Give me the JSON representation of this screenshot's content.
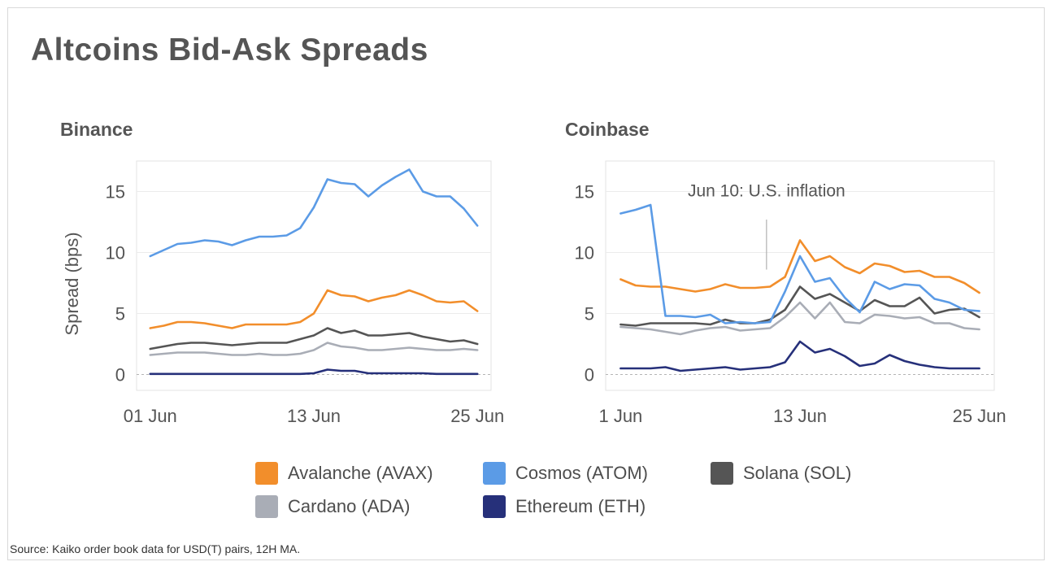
{
  "title": "Altcoins Bid-Ask Spreads",
  "source": "Source: Kaiko order book data for USD(T) pairs, 12H MA.",
  "colors": {
    "Avalanche (AVAX)": "#f28e2b",
    "Cosmos (ATOM)": "#5b9be6",
    "Solana (SOL)": "#555555",
    "Cardano (ADA)": "#a9adb6",
    "Ethereum (ETH)": "#26307a"
  },
  "legend": [
    {
      "label": "Avalanche (AVAX)",
      "color": "#f28e2b"
    },
    {
      "label": "Cosmos (ATOM)",
      "color": "#5b9be6"
    },
    {
      "label": "Solana (SOL)",
      "color": "#555555"
    },
    {
      "label": "Cardano (ADA)",
      "color": "#a9adb6"
    },
    {
      "label": "Ethereum (ETH)",
      "color": "#26307a"
    }
  ],
  "chart_data": [
    {
      "type": "line",
      "title": "Binance",
      "xlabel": "",
      "ylabel": "Spread (bps)",
      "ylim": [
        -1.3,
        17.5
      ],
      "yticks": [
        0,
        5,
        10,
        15
      ],
      "xlim": [
        "2022-05-31",
        "2022-06-26"
      ],
      "xticks": [
        {
          "date": "2022-06-01",
          "label": "01 Jun"
        },
        {
          "date": "2022-06-13",
          "label": "13 Jun"
        },
        {
          "date": "2022-06-25",
          "label": "25 Jun"
        }
      ],
      "x": [
        "2022-06-01",
        "2022-06-02",
        "2022-06-03",
        "2022-06-04",
        "2022-06-05",
        "2022-06-06",
        "2022-06-07",
        "2022-06-08",
        "2022-06-09",
        "2022-06-10",
        "2022-06-11",
        "2022-06-12",
        "2022-06-13",
        "2022-06-14",
        "2022-06-15",
        "2022-06-16",
        "2022-06-17",
        "2022-06-18",
        "2022-06-19",
        "2022-06-20",
        "2022-06-21",
        "2022-06-22",
        "2022-06-23",
        "2022-06-24",
        "2022-06-25"
      ],
      "series": [
        {
          "name": "Avalanche (AVAX)",
          "values": [
            3.8,
            4.0,
            4.3,
            4.3,
            4.2,
            4.0,
            3.8,
            4.1,
            4.1,
            4.1,
            4.1,
            4.3,
            5.0,
            6.9,
            6.5,
            6.4,
            6.0,
            6.3,
            6.5,
            6.9,
            6.5,
            6.0,
            5.9,
            6.0,
            5.2
          ]
        },
        {
          "name": "Cosmos (ATOM)",
          "values": [
            9.7,
            10.2,
            10.7,
            10.8,
            11.0,
            10.9,
            10.6,
            11.0,
            11.3,
            11.3,
            11.4,
            12.0,
            13.7,
            16.0,
            15.7,
            15.6,
            14.6,
            15.5,
            16.2,
            16.8,
            15.0,
            14.6,
            14.6,
            13.6,
            12.2
          ]
        },
        {
          "name": "Solana (SOL)",
          "values": [
            2.1,
            2.3,
            2.5,
            2.6,
            2.6,
            2.5,
            2.4,
            2.5,
            2.6,
            2.6,
            2.6,
            2.9,
            3.2,
            3.8,
            3.4,
            3.6,
            3.2,
            3.2,
            3.3,
            3.4,
            3.1,
            2.9,
            2.7,
            2.8,
            2.5
          ]
        },
        {
          "name": "Cardano (ADA)",
          "values": [
            1.6,
            1.7,
            1.8,
            1.8,
            1.8,
            1.7,
            1.6,
            1.6,
            1.7,
            1.6,
            1.6,
            1.7,
            2.0,
            2.6,
            2.3,
            2.2,
            2.0,
            2.0,
            2.1,
            2.2,
            2.1,
            2.0,
            2.0,
            2.1,
            2.0
          ]
        },
        {
          "name": "Ethereum (ETH)",
          "values": [
            0.05,
            0.05,
            0.05,
            0.05,
            0.05,
            0.05,
            0.05,
            0.05,
            0.05,
            0.05,
            0.05,
            0.05,
            0.1,
            0.4,
            0.3,
            0.3,
            0.1,
            0.1,
            0.1,
            0.1,
            0.1,
            0.05,
            0.05,
            0.05,
            0.05
          ]
        }
      ]
    },
    {
      "type": "line",
      "title": "Coinbase",
      "xlabel": "",
      "ylabel": "",
      "ylim": [
        -1.3,
        17.5
      ],
      "yticks": [
        0,
        5,
        10,
        15
      ],
      "xlim": [
        "2022-05-31",
        "2022-06-26"
      ],
      "xticks": [
        {
          "date": "2022-06-01",
          "label": "1 Jun"
        },
        {
          "date": "2022-06-13",
          "label": "13 Jun"
        },
        {
          "date": "2022-06-25",
          "label": "25 Jun"
        }
      ],
      "annotation": {
        "text": "Jun 10: U.S. inflation",
        "date": "2022-06-10"
      },
      "x": [
        "2022-06-01",
        "2022-06-02",
        "2022-06-03",
        "2022-06-04",
        "2022-06-05",
        "2022-06-06",
        "2022-06-07",
        "2022-06-08",
        "2022-06-09",
        "2022-06-10",
        "2022-06-11",
        "2022-06-12",
        "2022-06-13",
        "2022-06-14",
        "2022-06-15",
        "2022-06-16",
        "2022-06-17",
        "2022-06-18",
        "2022-06-19",
        "2022-06-20",
        "2022-06-21",
        "2022-06-22",
        "2022-06-23",
        "2022-06-24",
        "2022-06-25"
      ],
      "series": [
        {
          "name": "Avalanche (AVAX)",
          "values": [
            7.8,
            7.3,
            7.2,
            7.2,
            7.0,
            6.8,
            7.0,
            7.4,
            7.1,
            7.1,
            7.2,
            8.0,
            11.0,
            9.3,
            9.7,
            8.8,
            8.3,
            9.1,
            8.9,
            8.4,
            8.5,
            8.0,
            8.0,
            7.5,
            6.7
          ]
        },
        {
          "name": "Cosmos (ATOM)",
          "values": [
            13.2,
            13.5,
            13.9,
            4.8,
            4.8,
            4.7,
            4.9,
            4.2,
            4.3,
            4.2,
            4.3,
            6.8,
            9.7,
            7.6,
            7.9,
            6.3,
            5.1,
            7.6,
            7.0,
            7.4,
            7.3,
            6.2,
            5.9,
            5.3,
            5.2
          ]
        },
        {
          "name": "Solana (SOL)",
          "values": [
            4.1,
            4.0,
            4.2,
            4.2,
            4.2,
            4.2,
            4.1,
            4.5,
            4.2,
            4.2,
            4.5,
            5.3,
            7.2,
            6.2,
            6.6,
            5.9,
            5.2,
            6.1,
            5.6,
            5.6,
            6.3,
            5.0,
            5.3,
            5.4,
            4.7
          ]
        },
        {
          "name": "Cardano (ADA)",
          "values": [
            3.9,
            3.8,
            3.7,
            3.5,
            3.3,
            3.6,
            3.8,
            3.9,
            3.6,
            3.7,
            3.8,
            4.7,
            5.9,
            4.6,
            5.9,
            4.3,
            4.2,
            4.9,
            4.8,
            4.6,
            4.7,
            4.2,
            4.2,
            3.8,
            3.7
          ]
        },
        {
          "name": "Ethereum (ETH)",
          "values": [
            0.5,
            0.5,
            0.5,
            0.6,
            0.3,
            0.4,
            0.5,
            0.6,
            0.4,
            0.5,
            0.6,
            1.0,
            2.7,
            1.8,
            2.1,
            1.5,
            0.7,
            0.9,
            1.6,
            1.1,
            0.8,
            0.6,
            0.5,
            0.5,
            0.5
          ]
        }
      ]
    }
  ]
}
